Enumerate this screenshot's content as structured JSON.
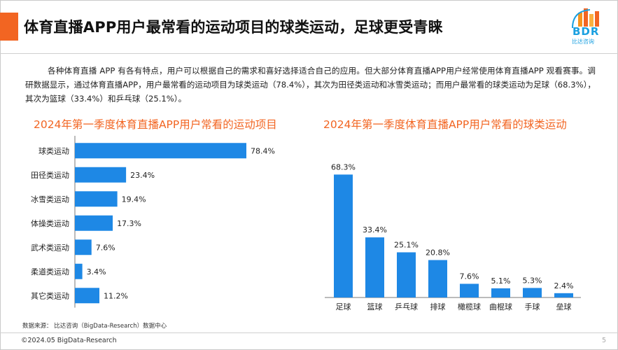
{
  "slide": {
    "title": "体育直播APP用户最常看的运动项目的球类运动，足球更受青睐",
    "intro": "各种体育直播 APP 有各有特点，用户可以根据自己的需求和喜好选择适合自己的应用。但大部分体育直播APP用户经常使用体育直播APP 观看赛事。调研数据显示，通过体育直播APP，用户最常看的运动项目为球类运动（78.4%），其次为田径类运动和冰雪类运动；而用户最常看的球类运动为足球（68.3%），其次为篮球（33.4%）和乒乓球（25.1%）。",
    "source": "数据来源：  比达咨询（BigData-Research）数据中心",
    "copyright": "©2024.05 BigData-Research",
    "page_number": "5",
    "logo_text": "BDR",
    "logo_sub": "比达咨询",
    "accent_color": "#f26522",
    "bar_color": "#1e88e5"
  },
  "chart_data": [
    {
      "type": "bar",
      "orientation": "horizontal",
      "title": "2024年第一季度体育直播APP用户常看的运动项目",
      "categories": [
        "球类运动",
        "田径类运动",
        "冰雪类运动",
        "体操类运动",
        "武术类运动",
        "柔道类运动",
        "其它类运动"
      ],
      "values": [
        78.4,
        23.4,
        19.4,
        17.3,
        7.6,
        3.4,
        11.2
      ],
      "labels": [
        "78.4%",
        "23.4%",
        "19.4%",
        "17.3%",
        "7.6%",
        "3.4%",
        "11.2%"
      ],
      "unit": "%",
      "xlim": [
        0,
        80
      ],
      "grid": false,
      "legend": "none"
    },
    {
      "type": "bar",
      "orientation": "vertical",
      "title": "2024年第一季度体育直播APP用户常看的球类运动",
      "categories": [
        "足球",
        "篮球",
        "乒乓球",
        "排球",
        "橄榄球",
        "曲棍球",
        "手球",
        "垒球"
      ],
      "values": [
        68.3,
        33.4,
        25.1,
        20.8,
        7.6,
        5.1,
        5.3,
        2.4
      ],
      "labels": [
        "68.3%",
        "33.4%",
        "25.1%",
        "20.8%",
        "7.6%",
        "5.1%",
        "5.3%",
        "2.4%"
      ],
      "unit": "%",
      "ylim": [
        0,
        70
      ],
      "grid": false,
      "legend": "none"
    }
  ]
}
